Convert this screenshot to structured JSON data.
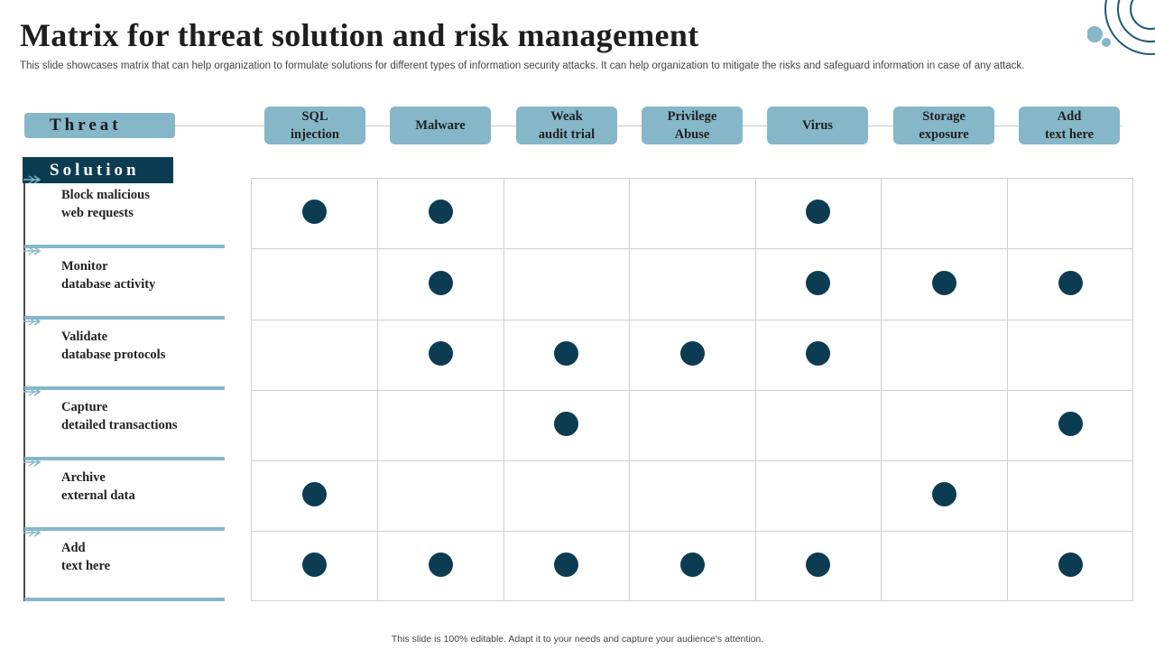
{
  "title": "Matrix for threat solution and risk management",
  "subtitle": "This slide showcases matrix that can help organization to formulate solutions for different types of information security attacks. It can help organization to mitigate the risks and safeguard information in case of any attack.",
  "threat_label": "Threat",
  "solution_label": "Solution",
  "threats": [
    "SQL\ninjection",
    "Malware",
    "Weak\naudit trial",
    "Privilege\nAbuse",
    "Virus",
    "Storage\nexposure",
    "Add\ntext here"
  ],
  "solutions": [
    "Block malicious\nweb requests",
    "Monitor\ndatabase activity",
    "Validate\ndatabase protocols",
    "Capture\ndetailed transactions",
    "Archive\nexternal data",
    "Add\ntext here"
  ],
  "matrix": [
    [
      1,
      1,
      0,
      0,
      1,
      0,
      0
    ],
    [
      0,
      1,
      0,
      0,
      1,
      1,
      1
    ],
    [
      0,
      1,
      1,
      1,
      1,
      0,
      0
    ],
    [
      0,
      0,
      1,
      0,
      0,
      0,
      1
    ],
    [
      1,
      0,
      0,
      0,
      0,
      1,
      0
    ],
    [
      1,
      1,
      1,
      1,
      1,
      0,
      1
    ]
  ],
  "colors": {
    "accent": "#85b7c9",
    "dark": "#0c3c51"
  },
  "footer": "This slide is 100% editable. Adapt it to your needs and capture your audience's attention."
}
